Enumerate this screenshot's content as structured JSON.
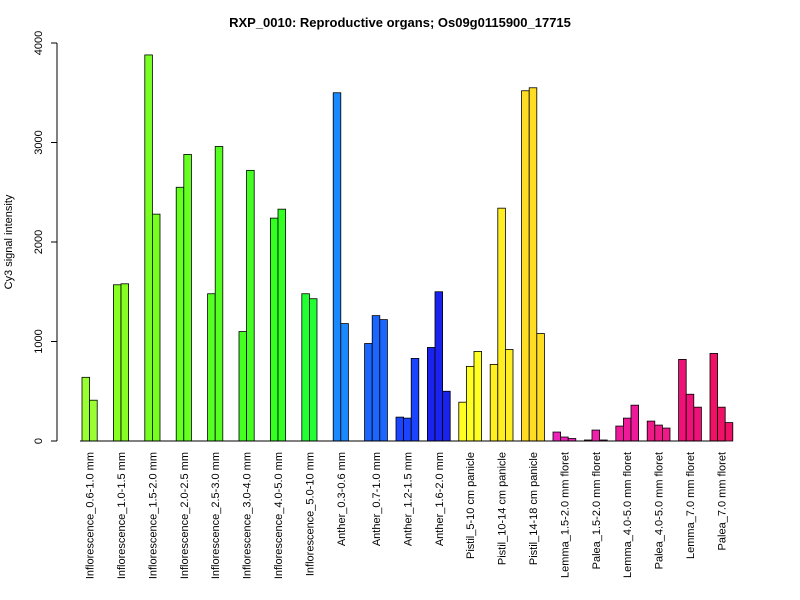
{
  "chart_data": {
    "type": "bar",
    "title": "RXP_0010: Reproductive organs; Os09g0115900_17715",
    "xlabel": "",
    "ylabel": "Cy3 signal intensity",
    "ylim": [
      0,
      4000
    ],
    "yticks": [
      "0",
      "1000",
      "2000",
      "3000",
      "4000"
    ],
    "grid": false,
    "legend": "none",
    "categories": [
      "Inflorescence_0.6-1.0 mm",
      "Inflorescence_1.0-1.5 mm",
      "Inflorescence_1.5-2.0 mm",
      "Inflorescence_2.0-2.5 mm",
      "Inflorescence_2.5-3.0 mm",
      "Inflorescence_3.0-4.0 mm",
      "Inflorescence_4.0-5.0 mm",
      "Inflorescence_5.0-10 mm",
      "Anther_0.3-0.6 mm",
      "Anther_0.7-1.0 mm",
      "Anther_1.2-1.5 mm",
      "Anther_1.6-2.0 mm",
      "Pistil_5-10 cm panicle",
      "Pistil_10-14 cm panicle",
      "Pistil_14-18 cm panicle",
      "Lemma_1.5-2.0 mm floret",
      "Palea_1.5-2.0 mm floret",
      "Lemma_4.0-5.0 mm floret",
      "Palea_4.0-5.0 mm floret",
      "Lemma_7.0 mm floret",
      "Palea_7.0 mm floret"
    ],
    "groups": [
      {
        "color": "#99ff33",
        "values": [
          640,
          410
        ]
      },
      {
        "color": "#88ff22",
        "values": [
          1570,
          1580
        ]
      },
      {
        "color": "#77ff22",
        "values": [
          3880,
          2280
        ]
      },
      {
        "color": "#66ff22",
        "values": [
          2550,
          2880
        ]
      },
      {
        "color": "#55ff22",
        "values": [
          1480,
          2960
        ]
      },
      {
        "color": "#44ff22",
        "values": [
          1100,
          2720
        ]
      },
      {
        "color": "#33ff22",
        "values": [
          2240,
          2330
        ]
      },
      {
        "color": "#22ff33",
        "values": [
          1480,
          1430
        ]
      },
      {
        "color": "#1a88ff",
        "values": [
          3500,
          1180
        ]
      },
      {
        "color": "#1a66ff",
        "values": [
          980,
          1260,
          1220
        ]
      },
      {
        "color": "#1a44ff",
        "values": [
          240,
          230,
          830
        ]
      },
      {
        "color": "#1a22ee",
        "values": [
          940,
          1500,
          500
        ]
      },
      {
        "color": "#ffff22",
        "values": [
          390,
          750,
          900
        ]
      },
      {
        "color": "#ffee22",
        "values": [
          770,
          2340,
          920
        ]
      },
      {
        "color": "#ffdd22",
        "values": [
          3520,
          3550,
          1080
        ]
      },
      {
        "color": "#ee22bb",
        "values": [
          90,
          40,
          25
        ]
      },
      {
        "color": "#ee22aa",
        "values": [
          10,
          110,
          10
        ]
      },
      {
        "color": "#ee1a99",
        "values": [
          150,
          230,
          360
        ]
      },
      {
        "color": "#ee1a88",
        "values": [
          200,
          160,
          130
        ]
      },
      {
        "color": "#ee1177",
        "values": [
          820,
          470,
          340
        ]
      },
      {
        "color": "#ee1166",
        "values": [
          880,
          340,
          185
        ]
      }
    ]
  }
}
